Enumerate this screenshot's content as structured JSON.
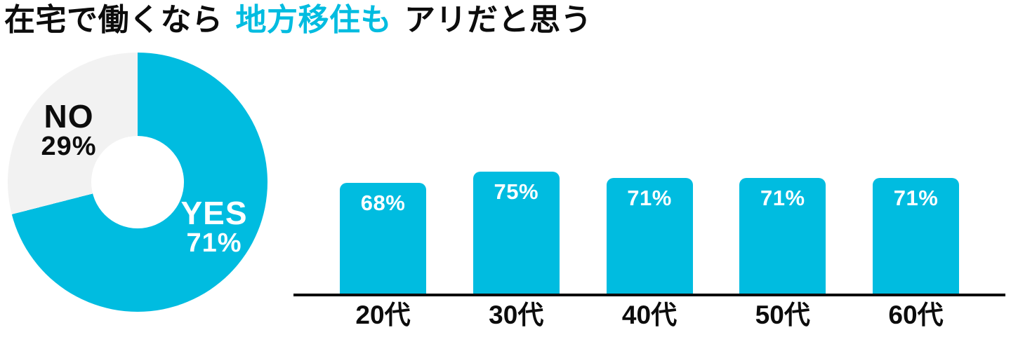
{
  "title": {
    "part1": "在宅で働くなら",
    "accent": "地方移住も",
    "part2": "アリだと思う"
  },
  "colors": {
    "accent": "#00bce0",
    "pie_rest": "#f2f2f2",
    "ink": "#0c0c0c",
    "value_label": "#ffffff"
  },
  "chart_data": [
    {
      "type": "pie",
      "subtype": "donut",
      "start_angle_deg": 0,
      "direction": "clockwise",
      "slices": [
        {
          "label": "YES",
          "value": 71,
          "display": "71%",
          "color": "#00bce0",
          "label_color": "#ffffff"
        },
        {
          "label": "NO",
          "value": 29,
          "display": "29%",
          "color": "#f2f2f2",
          "label_color": "#0c0c0c"
        }
      ]
    },
    {
      "type": "bar",
      "categories": [
        "20代",
        "30代",
        "40代",
        "50代",
        "60代"
      ],
      "values": [
        68,
        75,
        71,
        71,
        71
      ],
      "value_labels": [
        "68%",
        "75%",
        "71%",
        "71%",
        "71%"
      ],
      "ylim": [
        0,
        100
      ],
      "bar_color": "#00bce0",
      "axis_color": "#0c0c0c",
      "grid": false,
      "legend": false
    }
  ]
}
